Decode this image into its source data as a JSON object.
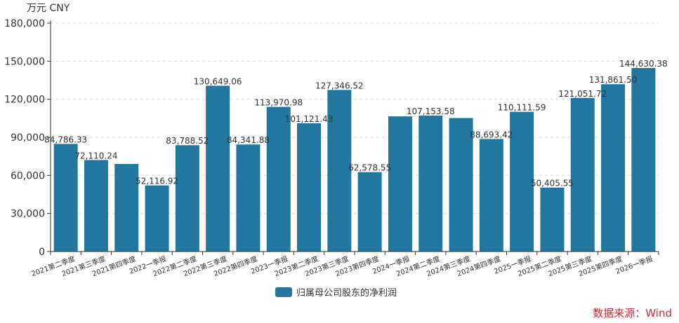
{
  "unit_label": "万元  CNY",
  "source_label": "数据来源：Wind",
  "colors": {
    "bar": "#21779f",
    "grid": "#dddddd",
    "axis": "#333333",
    "source": "#d9272e"
  },
  "chart_data": {
    "type": "bar",
    "title": "",
    "ylabel": "万元  CNY",
    "ylim": [
      0,
      180000
    ],
    "yticks": [
      0,
      30000,
      60000,
      90000,
      120000,
      150000,
      180000
    ],
    "ytick_labels": [
      "0",
      "30,000",
      "60,000",
      "90,000",
      "120,000",
      "150,000",
      "180,000"
    ],
    "grid": "horizontal-dashed",
    "legend_position": "bottom-center",
    "categories": [
      "2021第二季度",
      "2021第三季度",
      "2021第四季度",
      "2022一季报",
      "2022第二季度",
      "2022第三季度",
      "2022第四季度",
      "2023一季报",
      "2023第二季度",
      "2023第三季度",
      "2023第四季度",
      "2024一季报",
      "2024第二季度",
      "2024第三季度",
      "2024第四季度",
      "2025一季报",
      "2025第二季度",
      "2025第三季度",
      "2025第四季度",
      "2026一季报"
    ],
    "series": [
      {
        "name": "归属母公司股东的净利润",
        "values": [
          84786.33,
          72110.24,
          69000,
          52116.92,
          83788.52,
          130649.06,
          84341.88,
          113970.98,
          101121.43,
          127346.52,
          62578.55,
          106500,
          107153.58,
          105200,
          88693.42,
          110111.59,
          50405.55,
          121051.72,
          131861.5,
          144630.38
        ],
        "data_labels": [
          "84,786.33",
          "72,110.24",
          "",
          "52,116.92",
          "83,788.52",
          "130,649.06",
          "84,341.88",
          "113,970.98",
          "101,121.43",
          "127,346.52",
          "62,578.55",
          "",
          "107,153.58",
          "",
          "88,693.42",
          "110,111.59",
          "50,405.55",
          "121,051.72",
          "131,861.50",
          "144,630.38"
        ]
      }
    ]
  }
}
